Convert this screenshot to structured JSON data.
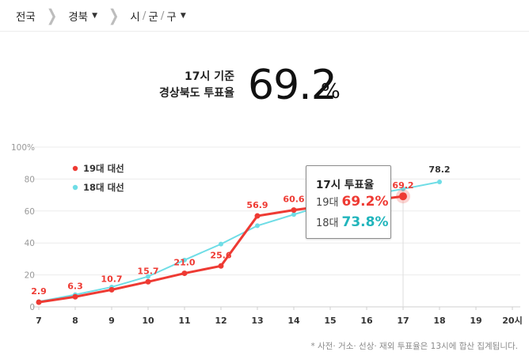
{
  "breadcrumb": {
    "level1": "전국",
    "level2": "경북",
    "level3_parts": [
      "시",
      "군",
      "구"
    ]
  },
  "headline": {
    "line1": "17시 기준",
    "line2": "경상북도 투표율",
    "rate": "69.2",
    "unit": "%"
  },
  "tooltip": {
    "title": "17시 투표율",
    "rows": [
      {
        "label": "19대",
        "value": "69.2%"
      },
      {
        "label": "18대",
        "value": "73.8%"
      }
    ]
  },
  "footnote": "* 사전· 거소· 선상· 재외 투표율은 13시에 합산 집계됩니다.",
  "colors": {
    "series19": "#ee3a33",
    "series18": "#6fdde6",
    "tooltip18": "#22b5bc",
    "grid": "#ececec",
    "axis": "#cfcfcf"
  },
  "chart_data": {
    "type": "line",
    "x": [
      7,
      8,
      9,
      10,
      11,
      12,
      13,
      14,
      15,
      16,
      17,
      18,
      19,
      20
    ],
    "x_tick_labels": [
      "7",
      "8",
      "9",
      "10",
      "11",
      "12",
      "13",
      "14",
      "15",
      "16",
      "17",
      "18",
      "19",
      "20시"
    ],
    "ylim": [
      0,
      100
    ],
    "y_ticks": [
      0,
      20,
      40,
      60,
      80,
      100
    ],
    "y_tick_labels": [
      "0",
      "20",
      "40",
      "60",
      "80",
      "100%"
    ],
    "grid": true,
    "legend_position": "top-left",
    "series": [
      {
        "name": "19대 대선",
        "x": [
          7,
          8,
          9,
          10,
          11,
          12,
          13,
          14,
          15,
          16,
          17
        ],
        "values": [
          2.9,
          6.3,
          10.7,
          15.7,
          21.0,
          25.6,
          56.9,
          60.6,
          63.5,
          66.3,
          69.2
        ],
        "labels": [
          "2.9",
          "6.3",
          "10.7",
          "15.7",
          "21.0",
          "25.6",
          "56.9",
          "60.6",
          "",
          "",
          "69.2"
        ]
      },
      {
        "name": "18대 대선",
        "x": [
          7,
          8,
          9,
          10,
          11,
          12,
          13,
          14,
          15,
          16,
          17,
          18
        ],
        "values": [
          3.3,
          7.6,
          12.4,
          19.0,
          29.3,
          39.3,
          50.8,
          57.8,
          64.7,
          69.9,
          73.8,
          78.2
        ],
        "labels": [
          "",
          "",
          "",
          "",
          "",
          "",
          "",
          "",
          "",
          "",
          "",
          "78.2"
        ]
      }
    ],
    "highlight_x": 17
  }
}
